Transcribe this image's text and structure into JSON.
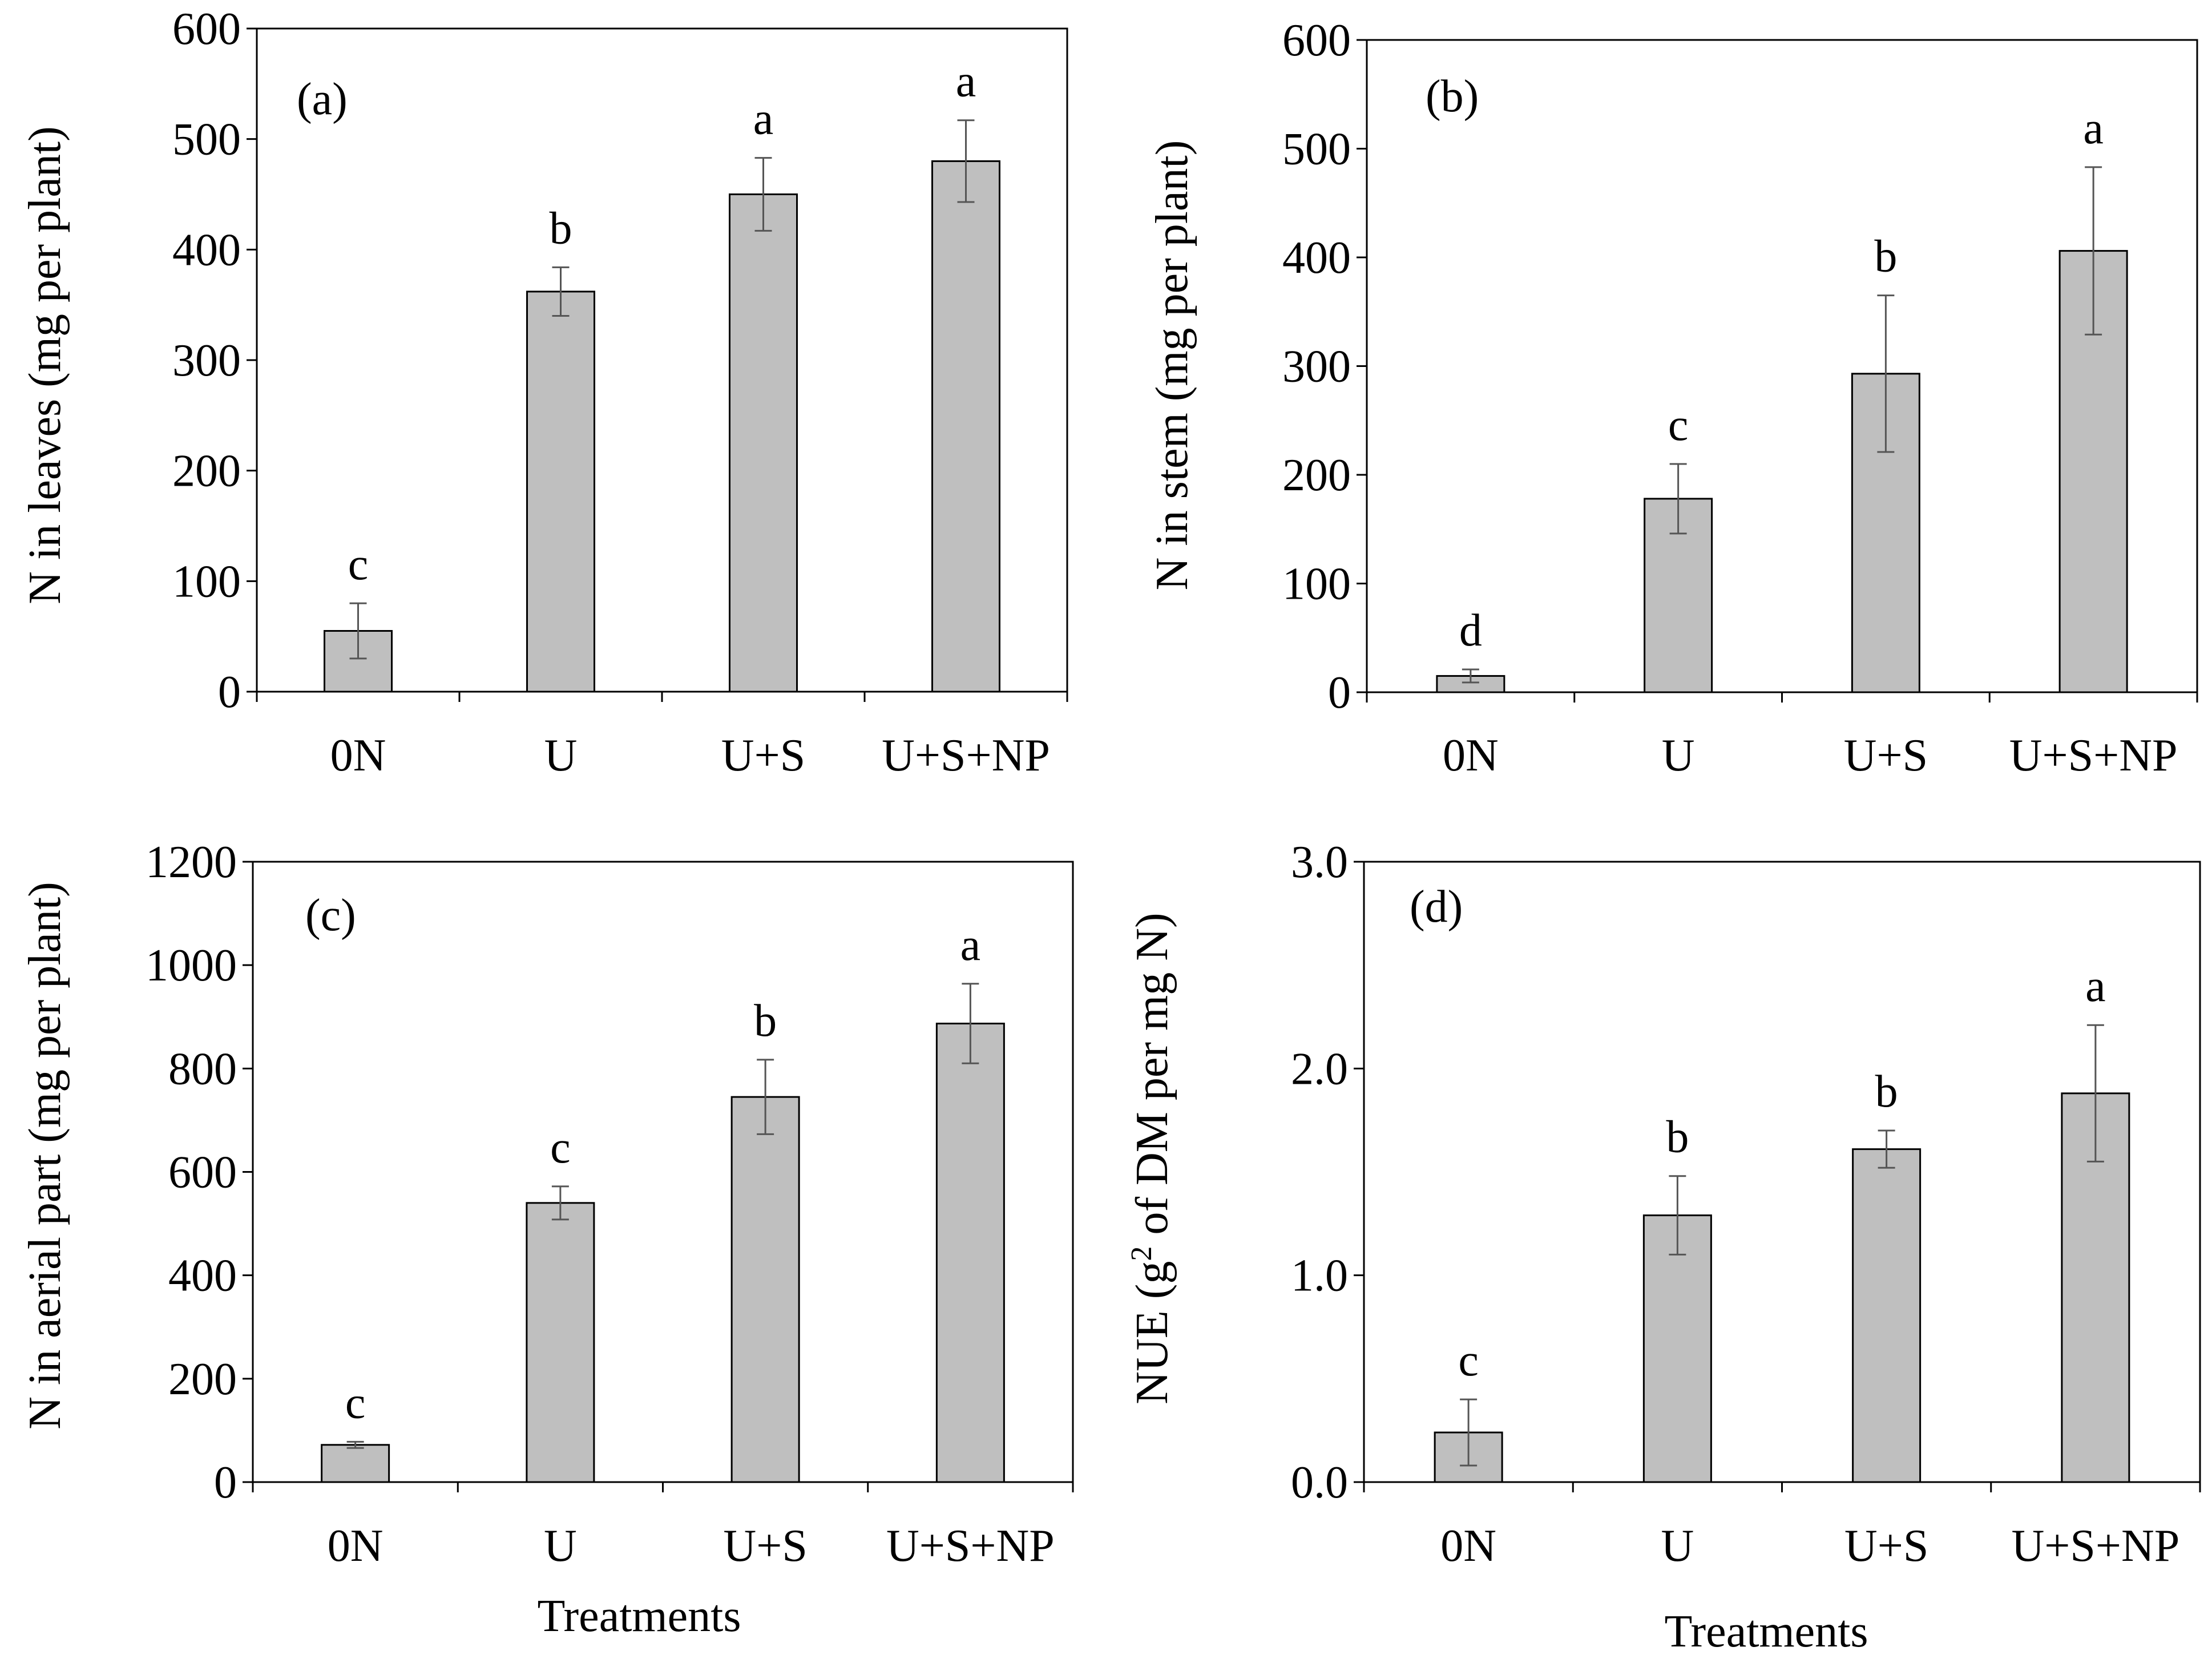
{
  "colors": {
    "bar_fill": "#bfbfbf",
    "bar_stroke": "#000000",
    "error_bar": "#555555",
    "axis": "#000000",
    "background": "#ffffff"
  },
  "chart_data": [
    {
      "type": "bar",
      "panel_label": "(a)",
      "title": "",
      "xlabel": "",
      "ylabel": "N in leaves (mg per plant)",
      "ylim": [
        0,
        600
      ],
      "yticks": [
        0,
        100,
        200,
        300,
        400,
        500,
        600
      ],
      "ytick_labels": [
        "0",
        "100",
        "200",
        "300",
        "400",
        "500",
        "600"
      ],
      "grid": false,
      "categories": [
        "0N",
        "U",
        "U+S",
        "U+S+NP"
      ],
      "values": [
        55,
        362,
        450,
        480
      ],
      "errors": [
        25,
        22,
        33,
        37
      ],
      "significance": [
        "c",
        "b",
        "a",
        "a"
      ]
    },
    {
      "type": "bar",
      "panel_label": "(b)",
      "title": "",
      "xlabel": "",
      "ylabel": "N in stem (mg per plant)",
      "ylim": [
        0,
        600
      ],
      "yticks": [
        0,
        100,
        200,
        300,
        400,
        500,
        600
      ],
      "ytick_labels": [
        "0",
        "100",
        "200",
        "300",
        "400",
        "500",
        "600"
      ],
      "grid": false,
      "categories": [
        "0N",
        "U",
        "U+S",
        "U+S+NP"
      ],
      "values": [
        15,
        178,
        293,
        406
      ],
      "errors": [
        6,
        32,
        72,
        77
      ],
      "significance": [
        "d",
        "c",
        "b",
        "a"
      ]
    },
    {
      "type": "bar",
      "panel_label": "(c)",
      "title": "",
      "xlabel": "Treatments",
      "ylabel": "N in aerial part (mg per plant)",
      "ylim": [
        0,
        1200
      ],
      "yticks": [
        0,
        200,
        400,
        600,
        800,
        1000,
        1200
      ],
      "ytick_labels": [
        "0",
        "200",
        "400",
        "600",
        "800",
        "1000",
        "1200"
      ],
      "grid": false,
      "categories": [
        "0N",
        "U",
        "U+S",
        "U+S+NP"
      ],
      "values": [
        72,
        540,
        745,
        887
      ],
      "errors": [
        6,
        32,
        72,
        77
      ],
      "significance": [
        "c",
        "c",
        "b",
        "a"
      ]
    },
    {
      "type": "bar",
      "panel_label": "(d)",
      "title": "",
      "xlabel": "Treatments",
      "ylabel_pre": "NUE (g",
      "ylabel_sup": "2",
      "ylabel_post": " of DM per mg N)",
      "ylim": [
        0,
        3.0
      ],
      "yticks": [
        0,
        1.0,
        2.0,
        3.0
      ],
      "ytick_labels": [
        "0.0",
        "1.0",
        "2.0",
        "3.0"
      ],
      "grid": false,
      "categories": [
        "0N",
        "U",
        "U+S",
        "U+S+NP"
      ],
      "values": [
        0.24,
        1.29,
        1.61,
        1.88
      ],
      "errors": [
        0.16,
        0.19,
        0.09,
        0.33
      ],
      "significance": [
        "c",
        "b",
        "b",
        "a"
      ]
    }
  ]
}
